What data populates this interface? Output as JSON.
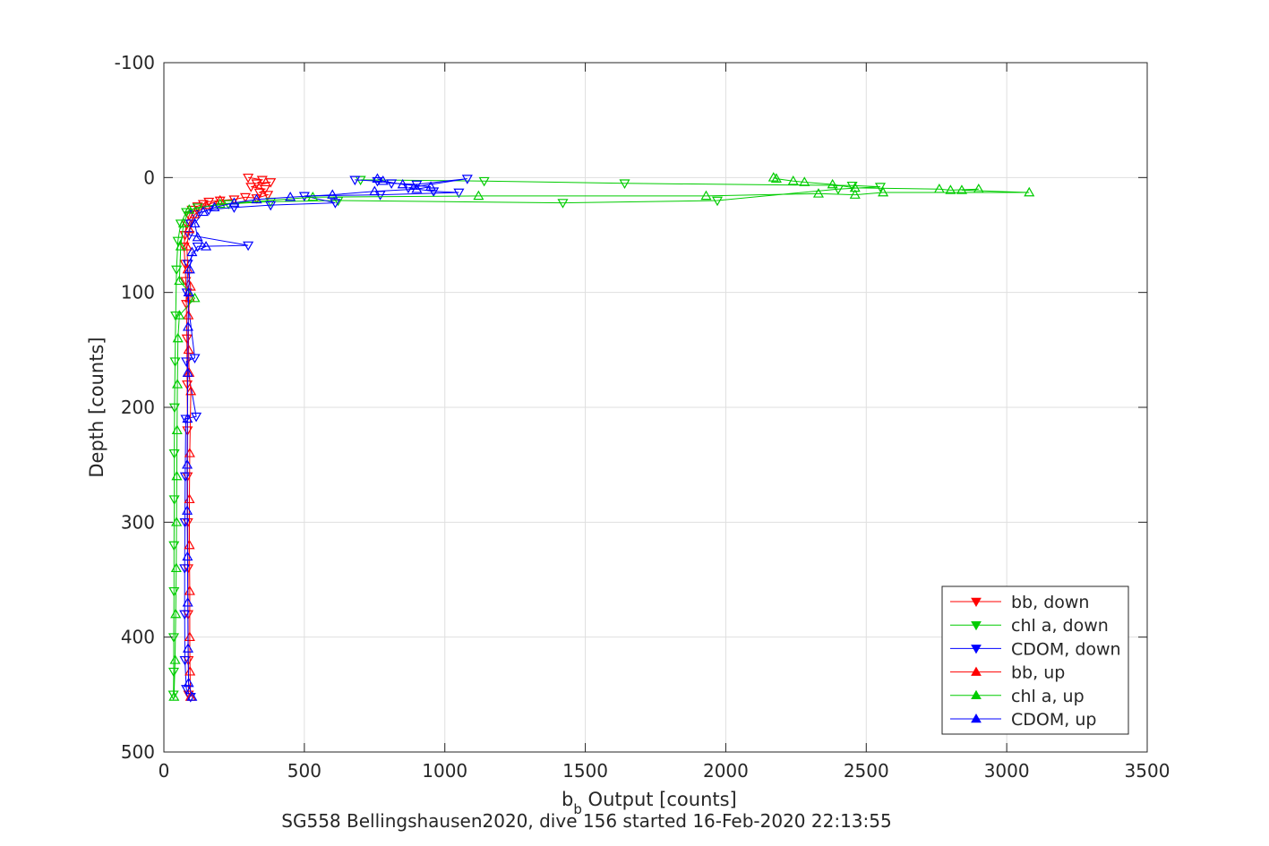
{
  "chart_data": {
    "type": "line",
    "xlabel_base": "b",
    "xlabel_sub": "b",
    "xlabel_rest": " Output [counts]",
    "ylabel": "Depth [counts]",
    "caption": "SG558 Bellingshausen2020, dive 156 started 16-Feb-2020 22:13:55",
    "xlim": [
      0,
      3500
    ],
    "ylim": [
      -100,
      500
    ],
    "y_reversed": true,
    "grid": true,
    "legend_position": "bottom-right",
    "x_ticks": [
      "0",
      "500",
      "1000",
      "1500",
      "2000",
      "2500",
      "3000",
      "3500"
    ],
    "y_ticks": [
      "-100",
      "0",
      "100",
      "200",
      "300",
      "400",
      "500"
    ],
    "series": [
      {
        "name": "bb, down",
        "color": "#ff0000",
        "marker": "triangle-down",
        "points": [
          [
            300,
            0
          ],
          [
            350,
            2
          ],
          [
            330,
            5
          ],
          [
            380,
            4
          ],
          [
            310,
            8
          ],
          [
            360,
            10
          ],
          [
            340,
            13
          ],
          [
            370,
            15
          ],
          [
            330,
            18
          ],
          [
            290,
            17
          ],
          [
            250,
            19
          ],
          [
            200,
            20
          ],
          [
            160,
            21
          ],
          [
            140,
            23
          ],
          [
            120,
            25
          ],
          [
            100,
            28
          ],
          [
            90,
            33
          ],
          [
            80,
            40
          ],
          [
            75,
            50
          ],
          [
            72,
            60
          ],
          [
            75,
            75
          ],
          [
            78,
            90
          ],
          [
            80,
            110
          ],
          [
            82,
            140
          ],
          [
            83,
            180
          ],
          [
            84,
            220
          ],
          [
            84,
            260
          ],
          [
            85,
            300
          ],
          [
            86,
            340
          ],
          [
            86,
            380
          ],
          [
            87,
            420
          ],
          [
            88,
            450
          ]
        ]
      },
      {
        "name": "chl a, down",
        "color": "#00cc00",
        "marker": "triangle-down",
        "points": [
          [
            700,
            2
          ],
          [
            1140,
            3
          ],
          [
            1640,
            5
          ],
          [
            2450,
            7
          ],
          [
            2550,
            8
          ],
          [
            2400,
            10
          ],
          [
            1970,
            20
          ],
          [
            1420,
            22
          ],
          [
            620,
            20
          ],
          [
            380,
            21
          ],
          [
            230,
            23
          ],
          [
            120,
            26
          ],
          [
            80,
            30
          ],
          [
            60,
            40
          ],
          [
            50,
            55
          ],
          [
            45,
            80
          ],
          [
            42,
            120
          ],
          [
            40,
            160
          ],
          [
            38,
            200
          ],
          [
            37,
            240
          ],
          [
            37,
            280
          ],
          [
            36,
            320
          ],
          [
            36,
            360
          ],
          [
            35,
            400
          ],
          [
            35,
            430
          ],
          [
            34,
            450
          ]
        ]
      },
      {
        "name": "CDOM, down",
        "color": "#0000ff",
        "marker": "triangle-down",
        "points": [
          [
            680,
            2
          ],
          [
            760,
            3
          ],
          [
            810,
            5
          ],
          [
            900,
            6
          ],
          [
            1080,
            1
          ],
          [
            870,
            9
          ],
          [
            960,
            12
          ],
          [
            1050,
            13
          ],
          [
            770,
            15
          ],
          [
            500,
            16
          ],
          [
            610,
            22
          ],
          [
            380,
            24
          ],
          [
            250,
            26
          ],
          [
            160,
            28
          ],
          [
            110,
            32
          ],
          [
            95,
            40
          ],
          [
            90,
            50
          ],
          [
            300,
            59
          ],
          [
            120,
            60
          ],
          [
            85,
            75
          ],
          [
            82,
            100
          ],
          [
            110,
            157
          ],
          [
            80,
            160
          ],
          [
            115,
            208
          ],
          [
            78,
            210
          ],
          [
            76,
            260
          ],
          [
            75,
            300
          ],
          [
            74,
            340
          ],
          [
            74,
            380
          ],
          [
            75,
            420
          ],
          [
            80,
            445
          ],
          [
            95,
            452
          ]
        ]
      },
      {
        "name": "bb, up",
        "color": "#ff0000",
        "marker": "triangle-up",
        "points": [
          [
            95,
            452
          ],
          [
            93,
            430
          ],
          [
            92,
            400
          ],
          [
            92,
            360
          ],
          [
            91,
            320
          ],
          [
            91,
            280
          ],
          [
            92,
            240
          ],
          [
            96,
            186
          ],
          [
            90,
            170
          ],
          [
            88,
            150
          ],
          [
            87,
            120
          ],
          [
            92,
            105
          ],
          [
            95,
            95
          ],
          [
            85,
            80
          ],
          [
            82,
            60
          ],
          [
            90,
            45
          ],
          [
            110,
            32
          ],
          [
            150,
            24
          ],
          [
            200,
            20
          ]
        ]
      },
      {
        "name": "chl a, up",
        "color": "#00cc00",
        "marker": "triangle-up",
        "points": [
          [
            36,
            452
          ],
          [
            40,
            420
          ],
          [
            42,
            380
          ],
          [
            44,
            340
          ],
          [
            45,
            300
          ],
          [
            46,
            260
          ],
          [
            47,
            220
          ],
          [
            48,
            180
          ],
          [
            50,
            140
          ],
          [
            55,
            120
          ],
          [
            110,
            105
          ],
          [
            55,
            90
          ],
          [
            60,
            60
          ],
          [
            70,
            40
          ],
          [
            90,
            28
          ],
          [
            200,
            23
          ],
          [
            530,
            17
          ],
          [
            1120,
            16
          ],
          [
            1930,
            16
          ],
          [
            2330,
            14
          ],
          [
            2460,
            15
          ],
          [
            2560,
            13
          ],
          [
            3080,
            13
          ],
          [
            2840,
            11
          ],
          [
            2900,
            10
          ],
          [
            2800,
            11
          ],
          [
            2760,
            10
          ],
          [
            2460,
            9
          ],
          [
            2380,
            6
          ],
          [
            2280,
            4
          ],
          [
            2240,
            3
          ],
          [
            2180,
            1
          ],
          [
            2170,
            0
          ]
        ]
      },
      {
        "name": "CDOM, up",
        "color": "#0000ff",
        "marker": "triangle-up",
        "points": [
          [
            100,
            452
          ],
          [
            88,
            440
          ],
          [
            86,
            410
          ],
          [
            85,
            370
          ],
          [
            84,
            330
          ],
          [
            83,
            290
          ],
          [
            83,
            250
          ],
          [
            84,
            210
          ],
          [
            85,
            170
          ],
          [
            86,
            130
          ],
          [
            88,
            100
          ],
          [
            92,
            80
          ],
          [
            100,
            65
          ],
          [
            150,
            60
          ],
          [
            120,
            52
          ],
          [
            110,
            40
          ],
          [
            140,
            30
          ],
          [
            180,
            26
          ],
          [
            250,
            22
          ],
          [
            330,
            19
          ],
          [
            450,
            17
          ],
          [
            600,
            15
          ],
          [
            750,
            12
          ],
          [
            900,
            10
          ],
          [
            950,
            8
          ],
          [
            850,
            6
          ],
          [
            780,
            3
          ],
          [
            760,
            1
          ]
        ]
      }
    ]
  }
}
